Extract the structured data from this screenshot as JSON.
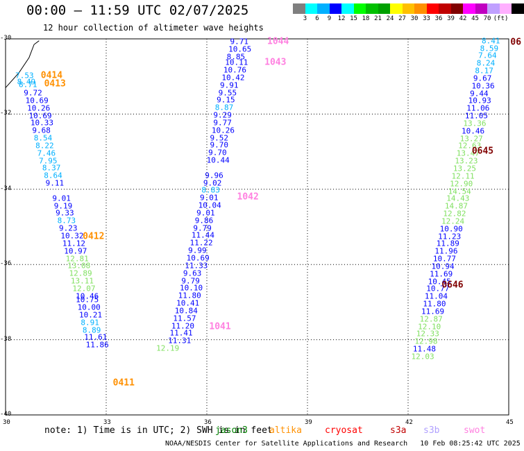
{
  "header": {
    "title": "00:00 – 11:59 UTC 02/07/2025",
    "subtitle": "12 hour collection of altimeter wave heights"
  },
  "colorbar": {
    "colors": [
      "#7f7f7f",
      "#00ffff",
      "#00b0ff",
      "#0000ff",
      "#00ffff",
      "#00ff00",
      "#00c000",
      "#00a000",
      "#ffff00",
      "#ffc000",
      "#ff9000",
      "#ff0000",
      "#c00000",
      "#800000",
      "#ff00ff",
      "#c000c0",
      "#c0a0ff",
      "#ffb0ff",
      "#000000"
    ],
    "labels": [
      "",
      "3",
      "6",
      "9",
      "12",
      "15",
      "18",
      "21",
      "24",
      "27",
      "30",
      "33",
      "36",
      "39",
      "42",
      "45",
      "70",
      "(ft)",
      ""
    ]
  },
  "chart_data": {
    "type": "scatter",
    "xlim": [
      30,
      45
    ],
    "ylim": [
      -40,
      -30
    ],
    "x_ticks": [
      "30",
      "33",
      "36",
      "39",
      "42",
      "45"
    ],
    "y_ticks": [
      "-30",
      "-32",
      "-34",
      "-36",
      "-38",
      "-40"
    ],
    "tracks": [
      {
        "pass_label": "0414",
        "pass_x": 31.05,
        "pass_y": -30.97,
        "pass_color": "#ff9000"
      },
      {
        "pass_label": "0413",
        "pass_x": 31.15,
        "pass_y": -31.2,
        "pass_color": "#ff9000"
      },
      {
        "pass_label": "0412",
        "pass_x": 32.3,
        "pass_y": -35.25,
        "pass_color": "#ff9000"
      },
      {
        "pass_label": "0411",
        "pass_x": 33.2,
        "pass_y": -39.15,
        "pass_color": "#ff9000"
      },
      {
        "pass_label": "1044",
        "pass_x": 37.8,
        "pass_y": -30.08,
        "pass_color": "#ff80e0"
      },
      {
        "pass_label": "1043",
        "pass_x": 37.72,
        "pass_y": -30.63,
        "pass_color": "#ff80e0"
      },
      {
        "pass_label": "1042",
        "pass_x": 36.9,
        "pass_y": -34.2,
        "pass_color": "#ff80e0"
      },
      {
        "pass_label": "1041",
        "pass_x": 36.07,
        "pass_y": -37.65,
        "pass_color": "#ff80e0"
      },
      {
        "pass_label": "0645",
        "pass_x": 43.9,
        "pass_y": -32.99,
        "pass_color": "#800000"
      },
      {
        "pass_label": "0646",
        "pass_x": 43.0,
        "pass_y": -36.55,
        "pass_color": "#800000"
      },
      {
        "pass_label": "06",
        "pass_x": 45.05,
        "pass_y": -30.09,
        "pass_color": "#800000"
      }
    ],
    "points": [
      {
        "x": 30.5,
        "y": -30.98,
        "v": "7.53",
        "c": "#00b0ff"
      },
      {
        "x": 30.55,
        "y": -31.14,
        "v": "8.49",
        "c": "#00b0ff"
      },
      {
        "x": 30.6,
        "y": -31.22,
        "v": "8.71",
        "c": "#00b0ff"
      },
      {
        "x": 30.75,
        "y": -31.44,
        "v": "9.72",
        "c": "#0000ff"
      },
      {
        "x": 30.8,
        "y": -31.64,
        "v": "10.69",
        "c": "#0000ff"
      },
      {
        "x": 30.85,
        "y": -31.84,
        "v": "10.26",
        "c": "#0000ff"
      },
      {
        "x": 30.9,
        "y": -32.04,
        "v": "10.69",
        "c": "#0000ff"
      },
      {
        "x": 30.95,
        "y": -32.24,
        "v": "10.33",
        "c": "#0000ff"
      },
      {
        "x": 31.0,
        "y": -32.44,
        "v": "9.68",
        "c": "#0000ff"
      },
      {
        "x": 31.05,
        "y": -32.64,
        "v": "8.54",
        "c": "#00b0ff"
      },
      {
        "x": 31.1,
        "y": -32.84,
        "v": "8.22",
        "c": "#00b0ff"
      },
      {
        "x": 31.15,
        "y": -33.04,
        "v": "7.46",
        "c": "#00b0ff"
      },
      {
        "x": 31.2,
        "y": -33.24,
        "v": "7.95",
        "c": "#00b0ff"
      },
      {
        "x": 31.3,
        "y": -33.44,
        "v": "8.37",
        "c": "#00b0ff"
      },
      {
        "x": 31.35,
        "y": -33.64,
        "v": "8.64",
        "c": "#00b0ff"
      },
      {
        "x": 31.4,
        "y": -33.84,
        "v": "9.11",
        "c": "#0000ff"
      },
      {
        "x": 31.6,
        "y": -34.24,
        "v": "9.01",
        "c": "#0000ff"
      },
      {
        "x": 31.65,
        "y": -34.44,
        "v": "9.19",
        "c": "#0000ff"
      },
      {
        "x": 31.7,
        "y": -34.64,
        "v": "9.33",
        "c": "#0000ff"
      },
      {
        "x": 31.75,
        "y": -34.84,
        "v": "8.73",
        "c": "#00b0ff"
      },
      {
        "x": 31.8,
        "y": -35.04,
        "v": "9.23",
        "c": "#0000ff"
      },
      {
        "x": 31.85,
        "y": -35.24,
        "v": "10.32",
        "c": "#0000ff"
      },
      {
        "x": 31.9,
        "y": -35.44,
        "v": "11.12",
        "c": "#0000ff"
      },
      {
        "x": 31.95,
        "y": -35.64,
        "v": "10.97",
        "c": "#0000ff"
      },
      {
        "x": 32.0,
        "y": -35.84,
        "v": "12.81",
        "c": "#80e060"
      },
      {
        "x": 32.05,
        "y": -36.04,
        "v": "13.08",
        "c": "#80e060"
      },
      {
        "x": 32.1,
        "y": -36.24,
        "v": "12.89",
        "c": "#80e060"
      },
      {
        "x": 32.15,
        "y": -36.44,
        "v": "13.11",
        "c": "#80e060"
      },
      {
        "x": 32.2,
        "y": -36.64,
        "v": "12.07",
        "c": "#80e060"
      },
      {
        "x": 32.3,
        "y": -36.84,
        "v": "10.46",
        "c": "#0000ff"
      },
      {
        "x": 32.3,
        "y": -36.94,
        "v": "10.75",
        "c": "#0000ff"
      },
      {
        "x": 32.35,
        "y": -37.14,
        "v": "10.00",
        "c": "#0000ff"
      },
      {
        "x": 32.4,
        "y": -37.34,
        "v": "10.21",
        "c": "#0000ff"
      },
      {
        "x": 32.45,
        "y": -37.54,
        "v": "8.91",
        "c": "#00b0ff"
      },
      {
        "x": 32.5,
        "y": -37.74,
        "v": "8.89",
        "c": "#00b0ff"
      },
      {
        "x": 32.55,
        "y": -37.94,
        "v": "11.61",
        "c": "#0000ff"
      },
      {
        "x": 32.6,
        "y": -38.14,
        "v": "11.86",
        "c": "#0000ff"
      }
    ]
  },
  "points_mid": [
    [
      "36.9",
      "-30.08",
      "9.71",
      "#0000ff"
    ],
    [
      "36.85",
      "-30.28",
      "10.65",
      "#0000ff"
    ],
    [
      "36.8",
      "-30.48",
      "8.85",
      "#0000ff"
    ],
    [
      "36.75",
      "-30.63",
      "10.11",
      "#0000ff"
    ],
    [
      "36.7",
      "-30.83",
      "10.76",
      "#0000ff"
    ],
    [
      "36.65",
      "-31.03",
      "10.42",
      "#0000ff"
    ],
    [
      "36.6",
      "-31.23",
      "9.91",
      "#0000ff"
    ],
    [
      "36.55",
      "-31.43",
      "9.55",
      "#0000ff"
    ],
    [
      "36.5",
      "-31.63",
      "9.15",
      "#0000ff"
    ],
    [
      "36.45",
      "-31.83",
      "8.87",
      "#00b0ff"
    ],
    [
      "36.4",
      "-32.03",
      "9.29",
      "#0000ff"
    ],
    [
      "36.4",
      "-32.23",
      "9.77",
      "#0000ff"
    ],
    [
      "36.35",
      "-32.43",
      "10.26",
      "#0000ff"
    ],
    [
      "36.3",
      "-32.63",
      "9.52",
      "#0000ff"
    ],
    [
      "36.3",
      "-32.83",
      "9.70",
      "#0000ff"
    ],
    [
      "36.25",
      "-33.03",
      "9.70",
      "#0000ff"
    ],
    [
      "36.2",
      "-33.23",
      "10.44",
      "#0000ff"
    ],
    [
      "36.15",
      "-33.63",
      "9.96",
      "#0000ff"
    ],
    [
      "36.1",
      "-33.83",
      "9.02",
      "#0000ff"
    ],
    [
      "36.05",
      "-34.03",
      "8.83",
      "#00b0ff"
    ],
    [
      "36.0",
      "-34.23",
      "9.01",
      "#0000ff"
    ],
    [
      "35.95",
      "-34.43",
      "10.04",
      "#0000ff"
    ],
    [
      "35.9",
      "-34.63",
      "9.01",
      "#0000ff"
    ],
    [
      "35.85",
      "-34.83",
      "9.86",
      "#0000ff"
    ],
    [
      "35.8",
      "-35.03",
      "9.79",
      "#0000ff"
    ],
    [
      "35.75",
      "-35.23",
      "11.44",
      "#0000ff"
    ],
    [
      "35.7",
      "-35.43",
      "11.22",
      "#0000ff"
    ],
    [
      "35.65",
      "-35.63",
      "9.99",
      "#0000ff"
    ],
    [
      "35.6",
      "-35.83",
      "10.69",
      "#0000ff"
    ],
    [
      "35.55",
      "-36.03",
      "11.33",
      "#0000ff"
    ],
    [
      "35.5",
      "-36.23",
      "9.63",
      "#0000ff"
    ],
    [
      "35.45",
      "-36.43",
      "9.79",
      "#0000ff"
    ],
    [
      "35.4",
      "-36.63",
      "10.10",
      "#0000ff"
    ],
    [
      "35.35",
      "-36.83",
      "11.80",
      "#0000ff"
    ],
    [
      "35.3",
      "-37.03",
      "10.41",
      "#0000ff"
    ],
    [
      "35.25",
      "-37.23",
      "10.84",
      "#0000ff"
    ],
    [
      "35.2",
      "-37.43",
      "11.57",
      "#0000ff"
    ],
    [
      "35.15",
      "-37.63",
      "11.20",
      "#0000ff"
    ],
    [
      "35.1",
      "-37.83",
      "11.41",
      "#0000ff"
    ],
    [
      "35.05",
      "-38.03",
      "11.31",
      "#0000ff"
    ],
    [
      "34.7",
      "-38.23",
      "12.19",
      "#80e060"
    ]
  ],
  "points_right": [
    [
      "44.4",
      "-30.05",
      "8.41",
      "#00b0ff"
    ],
    [
      "44.35",
      "-30.25",
      "8.59",
      "#00b0ff"
    ],
    [
      "44.3",
      "-30.45",
      "7.64",
      "#00b0ff"
    ],
    [
      "44.25",
      "-30.65",
      "8.24",
      "#00b0ff"
    ],
    [
      "44.2",
      "-30.85",
      "8.17",
      "#00b0ff"
    ],
    [
      "44.15",
      "-31.05",
      "9.67",
      "#0000ff"
    ],
    [
      "44.1",
      "-31.25",
      "10.36",
      "#0000ff"
    ],
    [
      "44.05",
      "-31.45",
      "9.44",
      "#0000ff"
    ],
    [
      "44.0",
      "-31.65",
      "10.93",
      "#0000ff"
    ],
    [
      "43.95",
      "-31.85",
      "11.06",
      "#0000ff"
    ],
    [
      "43.9",
      "-32.05",
      "11.05",
      "#0000ff"
    ],
    [
      "43.85",
      "-32.25",
      "13.36",
      "#80e060"
    ],
    [
      "43.8",
      "-32.45",
      "10.46",
      "#0000ff"
    ],
    [
      "43.75",
      "-32.65",
      "13.27",
      "#80e060"
    ],
    [
      "43.7",
      "-32.85",
      "12.63",
      "#80e060"
    ],
    [
      "43.65",
      "-33.05",
      "13.47",
      "#80e060"
    ],
    [
      "43.6",
      "-33.25",
      "13.23",
      "#80e060"
    ],
    [
      "43.55",
      "-33.45",
      "13.25",
      "#80e060"
    ],
    [
      "43.5",
      "-33.65",
      "12.11",
      "#80e060"
    ],
    [
      "43.45",
      "-33.85",
      "12.90",
      "#80e060"
    ],
    [
      "43.4",
      "-34.05",
      "14.54",
      "#80e060"
    ],
    [
      "43.35",
      "-34.25",
      "14.43",
      "#80e060"
    ],
    [
      "43.3",
      "-34.45",
      "14.87",
      "#80e060"
    ],
    [
      "43.25",
      "-34.65",
      "12.82",
      "#80e060"
    ],
    [
      "43.2",
      "-34.85",
      "12.24",
      "#80e060"
    ],
    [
      "43.15",
      "-35.05",
      "10.90",
      "#0000ff"
    ],
    [
      "43.1",
      "-35.25",
      "11.23",
      "#0000ff"
    ],
    [
      "43.05",
      "-35.45",
      "11.89",
      "#0000ff"
    ],
    [
      "43.0",
      "-35.65",
      "11.96",
      "#0000ff"
    ],
    [
      "42.95",
      "-35.85",
      "10.77",
      "#0000ff"
    ],
    [
      "42.9",
      "-36.05",
      "10.94",
      "#0000ff"
    ],
    [
      "42.85",
      "-36.25",
      "11.69",
      "#0000ff"
    ],
    [
      "42.8",
      "-36.45",
      "10.45",
      "#0000ff"
    ],
    [
      "42.75",
      "-36.65",
      "10.77",
      "#0000ff"
    ],
    [
      "42.7",
      "-36.85",
      "11.04",
      "#0000ff"
    ],
    [
      "42.65",
      "-37.05",
      "11.80",
      "#0000ff"
    ],
    [
      "42.6",
      "-37.25",
      "11.69",
      "#0000ff"
    ],
    [
      "42.55",
      "-37.45",
      "12.87",
      "#80e060"
    ],
    [
      "42.5",
      "-37.65",
      "12.10",
      "#80e060"
    ],
    [
      "42.45",
      "-37.85",
      "12.33",
      "#80e060"
    ],
    [
      "42.4",
      "-38.05",
      "12.98",
      "#80e060"
    ],
    [
      "42.35",
      "-38.25",
      "11.48",
      "#0000ff"
    ],
    [
      "42.3",
      "-38.45",
      "12.03",
      "#80e060"
    ]
  ],
  "note": "note: 1) Time is in UTC; 2) SWH is in feet",
  "satellites": [
    {
      "name": "jason3",
      "color": "#008000"
    },
    {
      "name": "altika",
      "color": "#ff9000"
    },
    {
      "name": "cryosat",
      "color": "#ff0000"
    },
    {
      "name": "s3a",
      "color": "#c00000"
    },
    {
      "name": "s3b",
      "color": "#b0a0ff"
    },
    {
      "name": "swot",
      "color": "#ff80e0"
    }
  ],
  "footer": "NOAA/NESDIS Center for Satellite Applications and Research   10 Feb 08:25:42 UTC 2025"
}
